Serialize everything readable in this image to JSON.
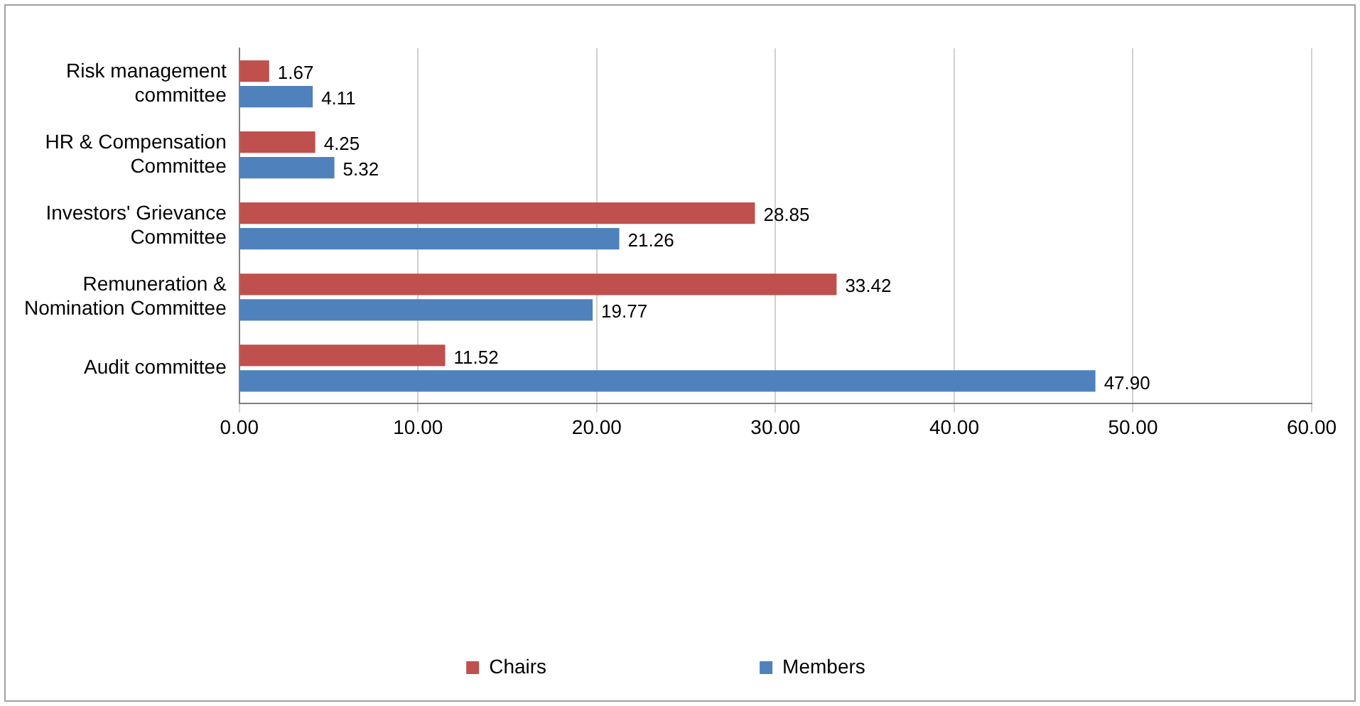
{
  "chart_data": {
    "type": "bar",
    "orientation": "horizontal",
    "categories": [
      "Risk management committee",
      "HR & Compensation Committee",
      "Investors' Grievance Committee",
      "Remuneration & Nomination Committee",
      "Audit committee"
    ],
    "series": [
      {
        "name": "Chairs",
        "color": "#c0504d",
        "values": [
          1.67,
          4.25,
          28.85,
          33.42,
          11.52
        ],
        "value_labels": [
          "1.67",
          "4.25",
          "28.85",
          "33.42",
          "11.52"
        ]
      },
      {
        "name": "Members",
        "color": "#4f81bd",
        "values": [
          4.11,
          5.32,
          21.26,
          19.77,
          47.9
        ],
        "value_labels": [
          "4.11",
          "5.32",
          "21.26",
          "19.77",
          "47.90"
        ]
      }
    ],
    "xlim": [
      0,
      60
    ],
    "xticks": [
      {
        "value": 0,
        "label": "0.00"
      },
      {
        "value": 10,
        "label": "10.00"
      },
      {
        "value": 20,
        "label": "20.00"
      },
      {
        "value": 30,
        "label": "30.00"
      },
      {
        "value": 40,
        "label": "40.00"
      },
      {
        "value": 50,
        "label": "50.00"
      },
      {
        "value": 60,
        "label": "60.00"
      }
    ],
    "grid": "x",
    "legend": "bottom"
  }
}
